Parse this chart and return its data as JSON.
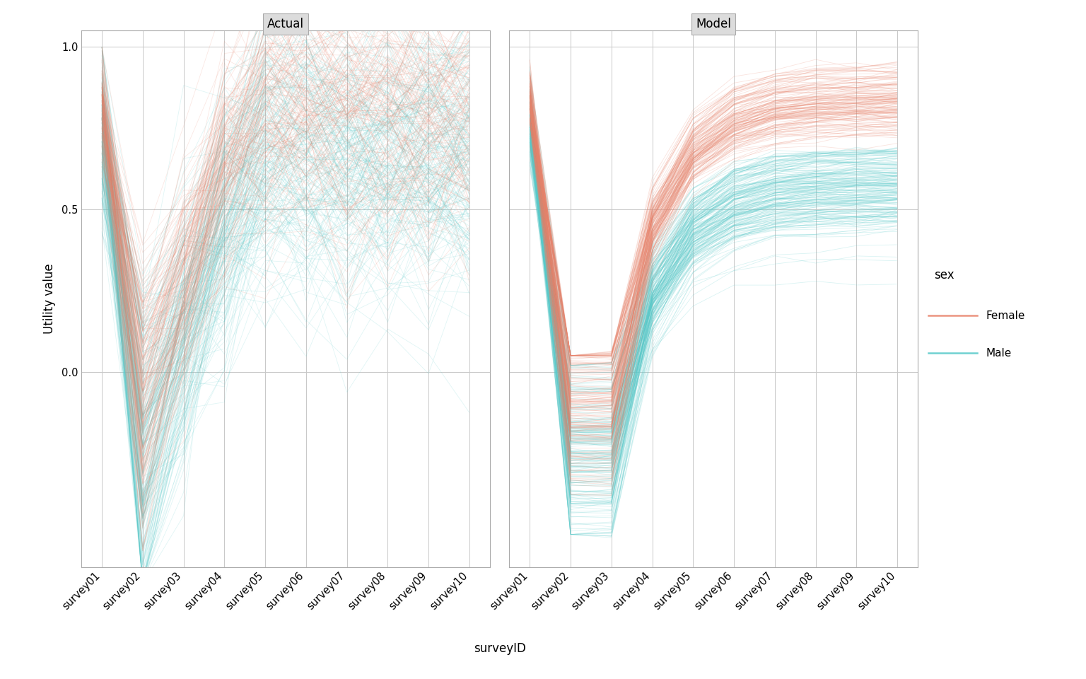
{
  "surveys": [
    "survey01",
    "survey02",
    "survey03",
    "survey04",
    "survey05",
    "survey06",
    "survey07",
    "survey08",
    "survey09",
    "survey10"
  ],
  "n_female": 150,
  "n_male": 200,
  "female_color": "#E8826A",
  "male_color": "#56C9C9",
  "alpha_actual": 0.18,
  "alpha_model": 0.22,
  "linewidth": 0.6,
  "panel_titles": [
    "Actual",
    "Model"
  ],
  "xlabel": "surveyID",
  "ylabel": "Utility value",
  "legend_title": "sex",
  "legend_labels": [
    "Female",
    "Male"
  ],
  "ylim": [
    -0.6,
    1.05
  ],
  "yticks": [
    0.0,
    0.5,
    1.0
  ],
  "background_color": "#ffffff",
  "panel_bg": "#ffffff",
  "header_bg": "#DCDCDC",
  "grid_color": "#c8c8c8",
  "seed": 123
}
